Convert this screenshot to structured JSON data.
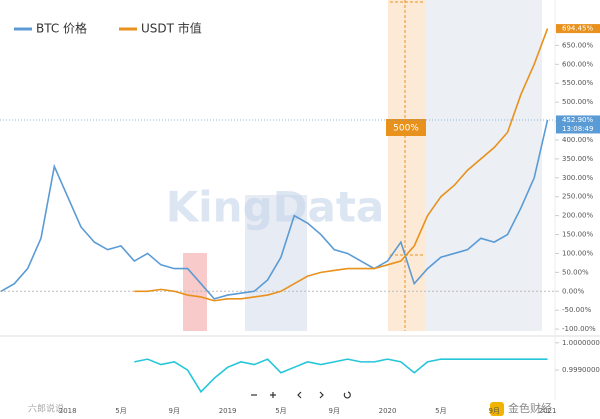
{
  "chart_data": [
    {
      "type": "line",
      "legend": "top-left",
      "watermark": "KingData",
      "annotation": "500%",
      "categories": [
        null,
        null,
        null,
        null,
        null,
        "2018",
        null,
        null,
        null,
        "5月",
        null,
        null,
        null,
        "9月",
        null,
        null,
        null,
        "2019",
        null,
        null,
        null,
        "5月",
        null,
        null,
        null,
        "9月",
        null,
        null,
        null,
        "2020",
        null,
        null,
        null,
        "5月",
        null,
        null,
        null,
        "9月",
        null,
        null,
        null,
        "2021"
      ],
      "series": [
        {
          "name": "BTC 价格",
          "color": "#5b9bd5",
          "values": [
            0,
            20,
            60,
            140,
            330,
            250,
            170,
            130,
            110,
            120,
            80,
            100,
            70,
            60,
            60,
            20,
            -20,
            -10,
            -5,
            0,
            30,
            90,
            200,
            180,
            150,
            110,
            100,
            80,
            60,
            80,
            130,
            20,
            60,
            90,
            100,
            110,
            140,
            130,
            150,
            220,
            300,
            452.9
          ]
        },
        {
          "name": "USDT 市值",
          "color": "#e8911c",
          "values": [
            null,
            null,
            null,
            null,
            null,
            null,
            null,
            null,
            null,
            null,
            0,
            0,
            5,
            0,
            -10,
            -15,
            -25,
            -20,
            -20,
            -15,
            -10,
            0,
            20,
            40,
            50,
            55,
            60,
            60,
            60,
            70,
            80,
            120,
            200,
            250,
            280,
            320,
            350,
            380,
            420,
            520,
            600,
            694.45
          ]
        }
      ],
      "price_labels": [
        {
          "value": 694.45,
          "label": "694.45%",
          "color": "#e8911c"
        },
        {
          "value": 452.9,
          "label": "452.90%",
          "time": "13:08:49",
          "color": "#5b9bd5"
        }
      ],
      "ylim": [
        -105,
        770
      ],
      "yticks": [
        {
          "value": -100,
          "label": "-100.00%"
        },
        {
          "value": -50,
          "label": "-50.00%"
        },
        {
          "value": 0,
          "label": "0.00%"
        },
        {
          "value": 50,
          "label": "50.00%"
        },
        {
          "value": 100,
          "label": "100.00%"
        },
        {
          "value": 150,
          "label": "150.00%"
        },
        {
          "value": 200,
          "label": "200.00%"
        },
        {
          "value": 250,
          "label": "250.00%"
        },
        {
          "value": 300,
          "label": "300.00%"
        },
        {
          "value": 350,
          "label": "350.00%"
        },
        {
          "value": 400,
          "label": "400.00%"
        },
        {
          "value": 450,
          "label": "450.00%"
        },
        {
          "value": 500,
          "label": "500.00%"
        },
        {
          "value": 550,
          "label": "550.00%"
        },
        {
          "value": 600,
          "label": "600.00%"
        },
        {
          "value": 650,
          "label": "650.00%"
        }
      ]
    },
    {
      "type": "line",
      "footer_logo": "金色财经",
      "footer_left": "六郎说说",
      "series": [
        {
          "color": "#26c6da",
          "values": [
            null,
            null,
            null,
            null,
            null,
            null,
            null,
            null,
            null,
            null,
            0.9993,
            0.9994,
            0.9992,
            0.9993,
            0.999,
            0.9982,
            0.9987,
            0.9991,
            0.9993,
            0.9992,
            0.9994,
            0.9989,
            0.9991,
            0.9993,
            0.9992,
            0.9993,
            0.9994,
            0.9993,
            0.9993,
            0.9994,
            0.9993,
            0.9989,
            0.9993,
            0.9994,
            0.9994,
            0.9994,
            0.9994,
            0.9994,
            0.9994,
            0.9994,
            0.9994,
            0.9994
          ]
        }
      ],
      "ylim": [
        0.9979,
        1.00025
      ],
      "yticks": [
        {
          "value": 1,
          "label": "1.00000000"
        },
        {
          "value": 0.999,
          "label": "0.99900000"
        }
      ]
    }
  ]
}
